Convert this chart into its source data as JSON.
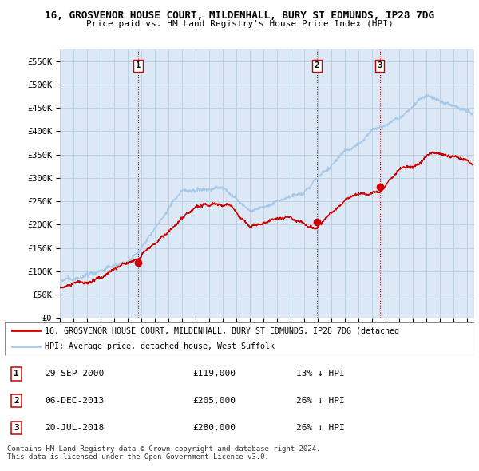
{
  "title": "16, GROSVENOR HOUSE COURT, MILDENHALL, BURY ST EDMUNDS, IP28 7DG",
  "subtitle": "Price paid vs. HM Land Registry's House Price Index (HPI)",
  "ylim": [
    0,
    575000
  ],
  "yticks": [
    0,
    50000,
    100000,
    150000,
    200000,
    250000,
    300000,
    350000,
    400000,
    450000,
    500000,
    550000
  ],
  "ytick_labels": [
    "£0",
    "£50K",
    "£100K",
    "£150K",
    "£200K",
    "£250K",
    "£300K",
    "£350K",
    "£400K",
    "£450K",
    "£500K",
    "£550K"
  ],
  "sale_dates": [
    2000.75,
    2013.92,
    2018.55
  ],
  "sale_prices": [
    119000,
    205000,
    280000
  ],
  "sale_labels": [
    "1",
    "2",
    "3"
  ],
  "hpi_color": "#a8c8e8",
  "sale_color": "#cc0000",
  "vline_color": "#cc0000",
  "bg_color": "#dce8f5",
  "grid_color": "#b8cfe0",
  "legend_entries": [
    "16, GROSVENOR HOUSE COURT, MILDENHALL, BURY ST EDMUNDS, IP28 7DG (detached",
    "HPI: Average price, detached house, West Suffolk"
  ],
  "table_entries": [
    [
      "1",
      "29-SEP-2000",
      "£119,000",
      "13% ↓ HPI"
    ],
    [
      "2",
      "06-DEC-2013",
      "£205,000",
      "26% ↓ HPI"
    ],
    [
      "3",
      "20-JUL-2018",
      "£280,000",
      "26% ↓ HPI"
    ]
  ],
  "footnote": "Contains HM Land Registry data © Crown copyright and database right 2024.\nThis data is licensed under the Open Government Licence v3.0."
}
